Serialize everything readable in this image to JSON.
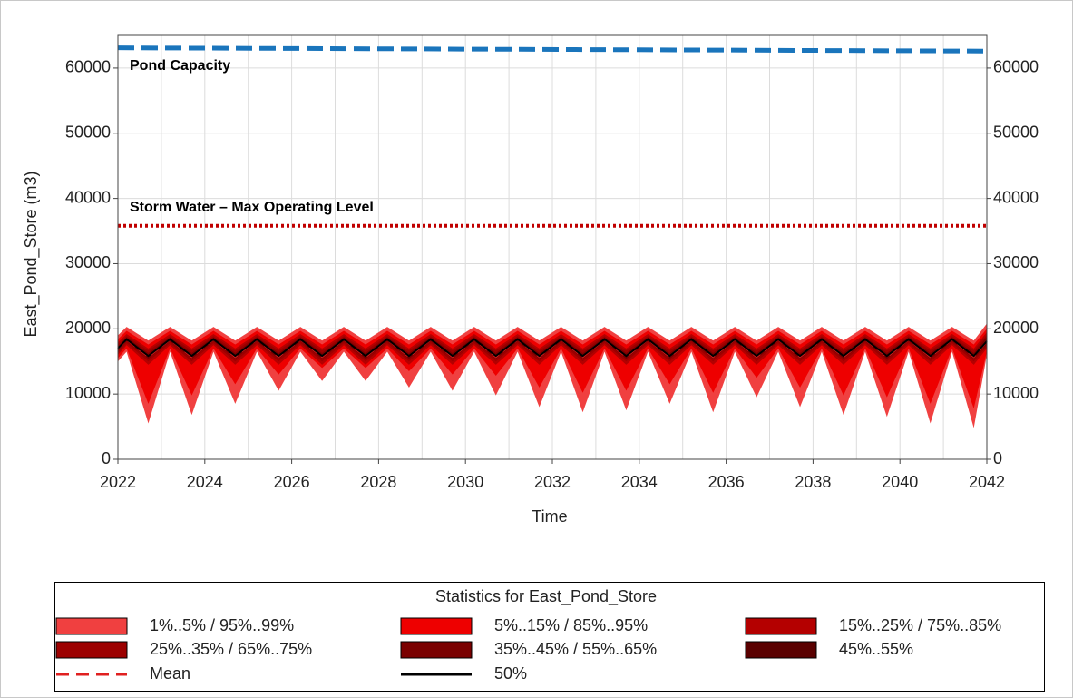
{
  "chart_data": {
    "type": "band",
    "y_label": "East_Pond_Store (m3)",
    "x_label": "Time",
    "xlim": [
      2022,
      2042
    ],
    "xticks": [
      2022,
      2024,
      2026,
      2028,
      2030,
      2032,
      2034,
      2036,
      2038,
      2040,
      2042
    ],
    "xminorticks": [
      2023,
      2025,
      2027,
      2029,
      2031,
      2033,
      2035,
      2037,
      2039,
      2041
    ],
    "ylim": [
      0,
      65000
    ],
    "yticks": [
      0,
      10000,
      20000,
      30000,
      40000,
      50000,
      60000
    ],
    "y2lim": [
      0,
      65000
    ],
    "y2ticks": [
      0,
      10000,
      20000,
      30000,
      40000,
      50000,
      60000
    ],
    "grid": true,
    "legend_title": "Statistics for East_Pond_Store",
    "reference_lines": [
      {
        "label": "Pond Capacity",
        "x": [
          2022,
          2042
        ],
        "values": [
          63100,
          62600
        ],
        "color": "#1a75bc",
        "style": "dashed"
      },
      {
        "label": "Storm Water – Max Operating Level",
        "x": [
          2022,
          2042
        ],
        "values": [
          35800,
          35800
        ],
        "color": "#c00000",
        "style": "dotted"
      }
    ],
    "x": [
      2022,
      2022.2,
      2022.7,
      2023.2,
      2023.7,
      2024.2,
      2024.7,
      2025.2,
      2025.7,
      2026.2,
      2026.7,
      2027.2,
      2027.7,
      2028.2,
      2028.7,
      2029.2,
      2029.7,
      2030.2,
      2030.7,
      2031.2,
      2031.7,
      2032.2,
      2032.7,
      2033.2,
      2033.7,
      2034.2,
      2034.7,
      2035.2,
      2035.7,
      2036.2,
      2036.7,
      2037.2,
      2037.7,
      2038.2,
      2038.7,
      2039.2,
      2039.7,
      2040.2,
      2040.7,
      2041.2,
      2041.7,
      2042
    ],
    "bands": [
      {
        "name": "1%..5% / 95%..99%",
        "color": "#f04040",
        "lower": [
          15000,
          16500,
          5500,
          16500,
          6800,
          16500,
          8500,
          16500,
          10500,
          16500,
          12000,
          16500,
          12000,
          16500,
          11000,
          16500,
          10500,
          16500,
          9800,
          16500,
          8000,
          16500,
          7200,
          16500,
          7500,
          16500,
          8500,
          16500,
          7200,
          16500,
          9500,
          16500,
          8000,
          16500,
          6800,
          16500,
          6500,
          16500,
          5500,
          16500,
          4800,
          16000
        ],
        "upper": [
          19000,
          20300,
          18200,
          20300,
          18200,
          20300,
          18200,
          20300,
          18200,
          20300,
          18200,
          20300,
          18200,
          20300,
          18200,
          20300,
          18200,
          20300,
          18200,
          20300,
          18200,
          20300,
          18200,
          20300,
          18200,
          20300,
          18200,
          20300,
          18200,
          20300,
          18200,
          20300,
          18200,
          20300,
          18200,
          20300,
          18200,
          20300,
          18200,
          20300,
          18200,
          20800
        ]
      },
      {
        "name": "5%..15% / 85%..95%",
        "color": "#ee0000",
        "lower": [
          15500,
          17000,
          8500,
          17000,
          9800,
          17000,
          11500,
          17000,
          13000,
          17000,
          14000,
          17000,
          14000,
          17000,
          13500,
          17000,
          13000,
          17000,
          12800,
          17000,
          11000,
          17000,
          10200,
          17000,
          10500,
          17000,
          11500,
          17000,
          10200,
          17000,
          12500,
          17000,
          11000,
          17000,
          9800,
          17000,
          9500,
          17000,
          8500,
          17000,
          7800,
          16500
        ],
        "upper": [
          18400,
          19700,
          17600,
          19700,
          17600,
          19700,
          17600,
          19700,
          17600,
          19700,
          17600,
          19700,
          17600,
          19700,
          17600,
          19700,
          17600,
          19700,
          17600,
          19700,
          17600,
          19700,
          17600,
          19700,
          17600,
          19700,
          17600,
          19700,
          17600,
          19700,
          17600,
          19700,
          17600,
          19700,
          17600,
          19700,
          17600,
          19700,
          17600,
          19700,
          17600,
          20000
        ]
      },
      {
        "name": "15%..25% / 75%..85%",
        "color": "#b40000",
        "lower": [
          16000,
          17500,
          14500,
          17500,
          14500,
          17500,
          14500,
          17500,
          14500,
          17500,
          14500,
          17500,
          14500,
          17500,
          14500,
          17500,
          14500,
          17500,
          14500,
          17500,
          14500,
          17500,
          14500,
          17500,
          14500,
          17500,
          14500,
          17500,
          14500,
          17500,
          14500,
          17500,
          14500,
          17500,
          14500,
          17500,
          14500,
          17500,
          14500,
          17500,
          14500,
          17000
        ],
        "upper": [
          17900,
          19200,
          17000,
          19200,
          17000,
          19200,
          17000,
          19200,
          17000,
          19200,
          17000,
          19200,
          17000,
          19200,
          17000,
          19200,
          17000,
          19200,
          17000,
          19200,
          17000,
          19200,
          17000,
          19200,
          17000,
          19200,
          17000,
          19200,
          17000,
          19200,
          17000,
          19200,
          17000,
          19200,
          17000,
          19200,
          17000,
          19200,
          17000,
          19200,
          17000,
          19500
        ]
      },
      {
        "name": "25%..35% / 65%..75%",
        "color": "#9c0000",
        "lower": [
          16300,
          17800,
          15000,
          17800,
          15000,
          17800,
          15000,
          17800,
          15000,
          17800,
          15000,
          17800,
          15000,
          17800,
          15000,
          17800,
          15000,
          17800,
          15000,
          17800,
          15000,
          17800,
          15000,
          17800,
          15000,
          17800,
          15000,
          17800,
          15000,
          17800,
          15000,
          17800,
          15000,
          17800,
          15000,
          17800,
          15000,
          17800,
          15000,
          17800,
          15000,
          17300
        ],
        "upper": [
          17600,
          18900,
          16700,
          18900,
          16700,
          18900,
          16700,
          18900,
          16700,
          18900,
          16700,
          18900,
          16700,
          18900,
          16700,
          18900,
          16700,
          18900,
          16700,
          18900,
          16700,
          18900,
          16700,
          18900,
          16700,
          18900,
          16700,
          18900,
          16700,
          18900,
          16700,
          18900,
          16700,
          18900,
          16700,
          18900,
          16700,
          18900,
          16700,
          18900,
          16700,
          19100
        ]
      },
      {
        "name": "35%..45% / 55%..65%",
        "color": "#7a0000",
        "lower": [
          16600,
          18100,
          15400,
          18100,
          15400,
          18100,
          15400,
          18100,
          15400,
          18100,
          15400,
          18100,
          15400,
          18100,
          15400,
          18100,
          15400,
          18100,
          15400,
          18100,
          15400,
          18100,
          15400,
          18100,
          15400,
          18100,
          15400,
          18100,
          15400,
          18100,
          15400,
          18100,
          15400,
          18100,
          15400,
          18100,
          15400,
          18100,
          15400,
          18100,
          15400,
          17600
        ],
        "upper": [
          17300,
          18700,
          16300,
          18700,
          16300,
          18700,
          16300,
          18700,
          16300,
          18700,
          16300,
          18700,
          16300,
          18700,
          16300,
          18700,
          16300,
          18700,
          16300,
          18700,
          16300,
          18700,
          16300,
          18700,
          16300,
          18700,
          16300,
          18700,
          16300,
          18700,
          16300,
          18700,
          16300,
          18700,
          16300,
          18700,
          16300,
          18700,
          16300,
          18700,
          16300,
          18800
        ]
      },
      {
        "name": "45%..55%",
        "color": "#5a0000",
        "lower": [
          16900,
          18300,
          15700,
          18300,
          15700,
          18300,
          15700,
          18300,
          15700,
          18300,
          15700,
          18300,
          15700,
          18300,
          15700,
          18300,
          15700,
          18300,
          15700,
          18300,
          15700,
          18300,
          15700,
          18300,
          15700,
          18300,
          15700,
          18300,
          15700,
          18300,
          15700,
          18300,
          15700,
          18300,
          15700,
          18300,
          15700,
          18300,
          15700,
          18300,
          15700,
          17900
        ],
        "upper": [
          17100,
          18500,
          16000,
          18500,
          16000,
          18500,
          16000,
          18500,
          16000,
          18500,
          16000,
          18500,
          16000,
          18500,
          16000,
          18500,
          16000,
          18500,
          16000,
          18500,
          16000,
          18500,
          16000,
          18500,
          16000,
          18500,
          16000,
          18500,
          16000,
          18500,
          16000,
          18500,
          16000,
          18500,
          16000,
          18500,
          16000,
          18500,
          16000,
          18500,
          16000,
          18300
        ]
      }
    ],
    "series": [
      {
        "name": "Mean",
        "color": "#e02020",
        "style": "dashed",
        "values": [
          16950,
          18350,
          15700,
          18350,
          15700,
          18350,
          15700,
          18350,
          15700,
          18350,
          15700,
          18350,
          15700,
          18350,
          15700,
          18350,
          15700,
          18350,
          15700,
          18350,
          15700,
          18350,
          15700,
          18350,
          15700,
          18350,
          15700,
          18350,
          15700,
          18350,
          15700,
          18350,
          15700,
          18350,
          15700,
          18350,
          15700,
          18350,
          15700,
          18350,
          15700,
          18050
        ]
      },
      {
        "name": "50%",
        "color": "#000000",
        "style": "solid",
        "values": [
          17000,
          18400,
          15850,
          18400,
          15850,
          18400,
          15850,
          18400,
          15850,
          18400,
          15850,
          18400,
          15850,
          18400,
          15850,
          18400,
          15850,
          18400,
          15850,
          18400,
          15850,
          18400,
          15850,
          18400,
          15850,
          18400,
          15850,
          18400,
          15850,
          18400,
          15850,
          18400,
          15850,
          18400,
          15850,
          18400,
          15850,
          18400,
          15850,
          18400,
          15850,
          18100
        ]
      }
    ]
  }
}
